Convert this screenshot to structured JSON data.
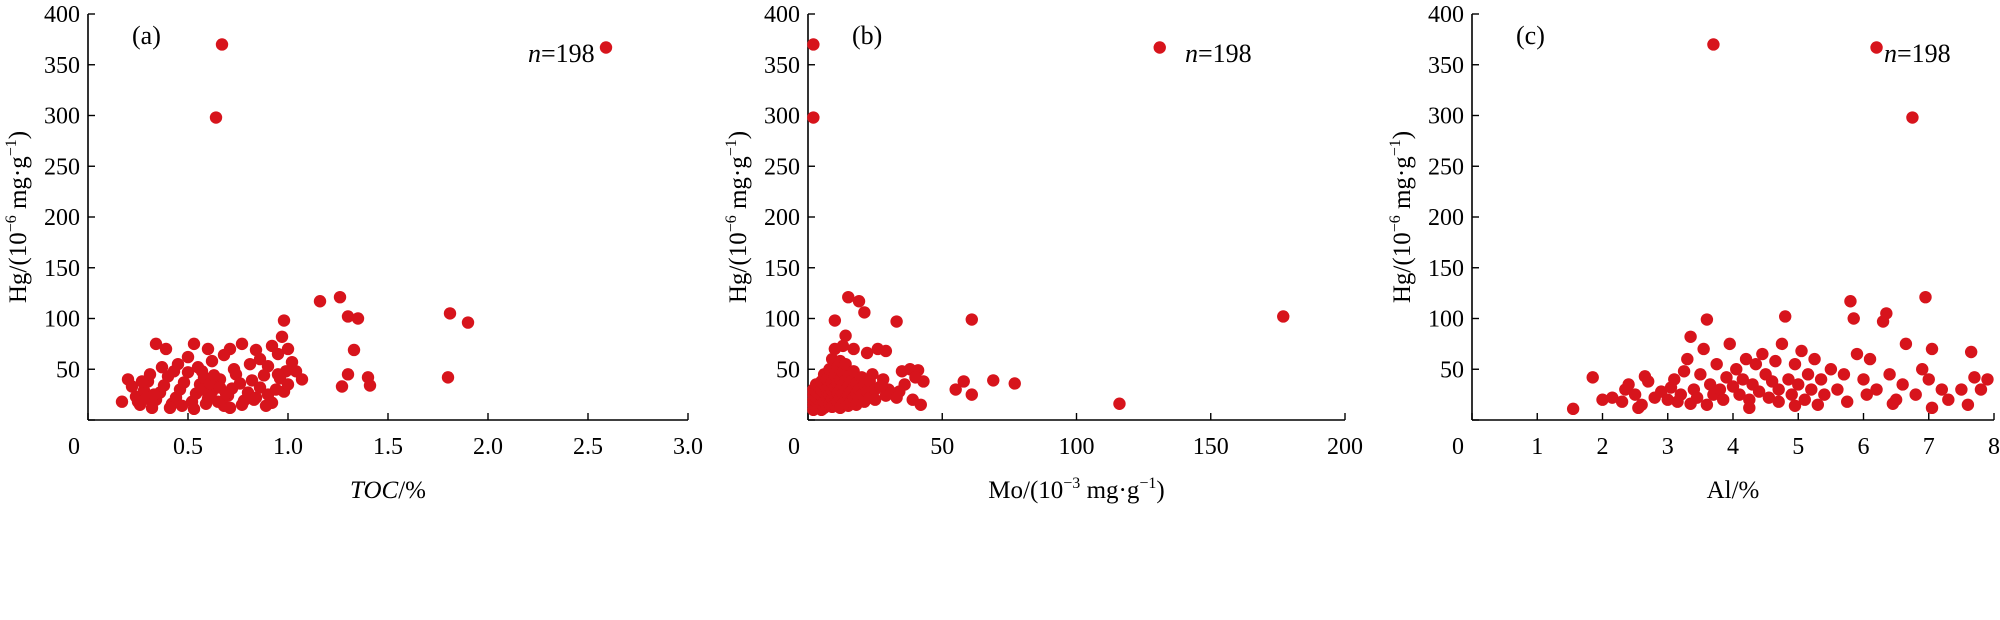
{
  "chart_data": [
    {
      "type": "scatter",
      "panel_label": "(a)",
      "annotation": {
        "italic": "n",
        "rest": "=198"
      },
      "xlabel": {
        "main": "TOC",
        "suffix": "/%",
        "main_italic": true
      },
      "ylabel": {
        "pre": "Hg/(10",
        "exp": "−6",
        "mid": " mg·g",
        "exp2": "−1",
        "post": ")"
      },
      "xlim": [
        0,
        3.0
      ],
      "ylim": [
        0,
        400
      ],
      "xticks": [
        "0",
        "0.5",
        "1.0",
        "1.5",
        "2.0",
        "2.5",
        "3.0"
      ],
      "xtick_values": [
        0,
        0.5,
        1.0,
        1.5,
        2.0,
        2.5,
        3.0
      ],
      "yticks": [
        "0",
        "50",
        "100",
        "150",
        "200",
        "250",
        "300",
        "350",
        "400"
      ],
      "ytick_values": [
        0,
        50,
        100,
        150,
        200,
        250,
        300,
        350,
        400
      ],
      "marker_color": "#d7141c",
      "points": [
        [
          0.67,
          370
        ],
        [
          0.64,
          298
        ],
        [
          2.59,
          367
        ],
        [
          1.16,
          117
        ],
        [
          1.26,
          121
        ],
        [
          1.3,
          102
        ],
        [
          1.35,
          100
        ],
        [
          0.98,
          98
        ],
        [
          1.81,
          105
        ],
        [
          1.9,
          96
        ],
        [
          1.8,
          42
        ],
        [
          1.33,
          69
        ],
        [
          1.4,
          42
        ],
        [
          1.41,
          34
        ],
        [
          1.3,
          45
        ],
        [
          1.27,
          33
        ],
        [
          0.34,
          75
        ],
        [
          0.39,
          70
        ],
        [
          0.53,
          75
        ],
        [
          0.6,
          70
        ],
        [
          0.71,
          70
        ],
        [
          0.77,
          75
        ],
        [
          0.84,
          69
        ],
        [
          0.92,
          73
        ],
        [
          0.95,
          65
        ],
        [
          0.97,
          82
        ],
        [
          1.0,
          70
        ],
        [
          1.02,
          57
        ],
        [
          1.04,
          48
        ],
        [
          1.07,
          40
        ],
        [
          0.99,
          48
        ],
        [
          0.95,
          45
        ],
        [
          0.9,
          53
        ],
        [
          0.86,
          60
        ],
        [
          0.81,
          55
        ],
        [
          0.2,
          40
        ],
        [
          0.17,
          18
        ],
        [
          0.22,
          33
        ],
        [
          0.24,
          23
        ],
        [
          0.26,
          15
        ],
        [
          0.28,
          29
        ],
        [
          0.3,
          38
        ],
        [
          0.32,
          12
        ],
        [
          0.34,
          20
        ],
        [
          0.36,
          27
        ],
        [
          0.38,
          34
        ],
        [
          0.4,
          43
        ],
        [
          0.42,
          16
        ],
        [
          0.44,
          22
        ],
        [
          0.46,
          30
        ],
        [
          0.48,
          37
        ],
        [
          0.5,
          47
        ],
        [
          0.52,
          18
        ],
        [
          0.54,
          26
        ],
        [
          0.56,
          35
        ],
        [
          0.58,
          42
        ],
        [
          0.6,
          21
        ],
        [
          0.62,
          28
        ],
        [
          0.64,
          33
        ],
        [
          0.66,
          40
        ],
        [
          0.68,
          14
        ],
        [
          0.7,
          24
        ],
        [
          0.72,
          31
        ],
        [
          0.74,
          45
        ],
        [
          0.76,
          36
        ],
        [
          0.78,
          19
        ],
        [
          0.8,
          27
        ],
        [
          0.82,
          39
        ],
        [
          0.84,
          22
        ],
        [
          0.86,
          32
        ],
        [
          0.88,
          44
        ],
        [
          0.9,
          25
        ],
        [
          0.92,
          17
        ],
        [
          0.94,
          30
        ],
        [
          0.96,
          41
        ],
        [
          0.98,
          28
        ],
        [
          1.0,
          35
        ],
        [
          0.45,
          55
        ],
        [
          0.5,
          62
        ],
        [
          0.55,
          52
        ],
        [
          0.62,
          58
        ],
        [
          0.68,
          64
        ],
        [
          0.73,
          50
        ],
        [
          0.57,
          48
        ],
        [
          0.43,
          48
        ],
        [
          0.37,
          52
        ],
        [
          0.31,
          45
        ],
        [
          0.27,
          38
        ],
        [
          0.25,
          18
        ],
        [
          0.29,
          21
        ],
        [
          0.33,
          25
        ],
        [
          0.41,
          12
        ],
        [
          0.47,
          14
        ],
        [
          0.53,
          11
        ],
        [
          0.59,
          16
        ],
        [
          0.65,
          18
        ],
        [
          0.71,
          12
        ],
        [
          0.77,
          15
        ],
        [
          0.83,
          20
        ],
        [
          0.89,
          14
        ],
        [
          0.57,
          30
        ],
        [
          0.61,
          36
        ],
        [
          0.63,
          44
        ],
        [
          0.66,
          32
        ],
        [
          0.69,
          26
        ]
      ]
    },
    {
      "type": "scatter",
      "panel_label": "(b)",
      "annotation": {
        "italic": "n",
        "rest": "=198"
      },
      "xlabel": {
        "main": "Mo/(10",
        "exp": "−3",
        "mid": " mg·g",
        "exp2": "−1",
        "post": ")"
      },
      "ylabel": {
        "pre": "Hg/(10",
        "exp": "−6",
        "mid": " mg·g",
        "exp2": "−1",
        "post": ")"
      },
      "xlim": [
        0,
        200
      ],
      "ylim": [
        0,
        400
      ],
      "xticks": [
        "0",
        "50",
        "100",
        "150",
        "200"
      ],
      "xtick_values": [
        0,
        50,
        100,
        150,
        200
      ],
      "yticks": [
        "0",
        "50",
        "100",
        "150",
        "200",
        "250",
        "300",
        "350",
        "400"
      ],
      "ytick_values": [
        0,
        50,
        100,
        150,
        200,
        250,
        300,
        350,
        400
      ],
      "marker_color": "#d7141c",
      "points": [
        [
          2,
          370
        ],
        [
          2,
          298
        ],
        [
          131,
          367
        ],
        [
          177,
          102
        ],
        [
          61,
          99
        ],
        [
          116,
          16
        ],
        [
          77,
          36
        ],
        [
          69,
          39
        ],
        [
          58,
          38
        ],
        [
          55,
          30
        ],
        [
          61,
          25
        ],
        [
          15,
          121
        ],
        [
          19,
          117
        ],
        [
          21,
          106
        ],
        [
          10,
          98
        ],
        [
          33,
          97
        ],
        [
          14,
          83
        ],
        [
          13,
          73
        ],
        [
          17,
          70
        ],
        [
          22,
          66
        ],
        [
          26,
          70
        ],
        [
          29,
          68
        ],
        [
          35,
          48
        ],
        [
          38,
          50
        ],
        [
          41,
          49
        ],
        [
          43,
          38
        ],
        [
          40,
          42
        ],
        [
          36,
          35
        ],
        [
          34,
          28
        ],
        [
          39,
          20
        ],
        [
          42,
          15
        ],
        [
          30,
          30
        ],
        [
          28,
          40
        ],
        [
          24,
          45
        ],
        [
          2,
          10
        ],
        [
          2,
          15
        ],
        [
          2,
          20
        ],
        [
          2,
          25
        ],
        [
          2,
          30
        ],
        [
          3,
          12
        ],
        [
          3,
          18
        ],
        [
          3,
          22
        ],
        [
          3,
          28
        ],
        [
          3,
          35
        ],
        [
          4,
          14
        ],
        [
          4,
          20
        ],
        [
          4,
          26
        ],
        [
          4,
          33
        ],
        [
          5,
          10
        ],
        [
          5,
          16
        ],
        [
          5,
          24
        ],
        [
          5,
          30
        ],
        [
          5,
          38
        ],
        [
          6,
          12
        ],
        [
          6,
          18
        ],
        [
          6,
          27
        ],
        [
          6,
          35
        ],
        [
          6,
          45
        ],
        [
          7,
          14
        ],
        [
          7,
          22
        ],
        [
          7,
          31
        ],
        [
          7,
          40
        ],
        [
          8,
          16
        ],
        [
          8,
          25
        ],
        [
          8,
          33
        ],
        [
          8,
          50
        ],
        [
          9,
          13
        ],
        [
          9,
          21
        ],
        [
          9,
          29
        ],
        [
          9,
          37
        ],
        [
          9,
          60
        ],
        [
          10,
          15
        ],
        [
          10,
          24
        ],
        [
          10,
          32
        ],
        [
          10,
          44
        ],
        [
          10,
          70
        ],
        [
          11,
          18
        ],
        [
          11,
          27
        ],
        [
          11,
          36
        ],
        [
          11,
          52
        ],
        [
          12,
          12
        ],
        [
          12,
          22
        ],
        [
          12,
          30
        ],
        [
          12,
          40
        ],
        [
          12,
          58
        ],
        [
          13,
          16
        ],
        [
          13,
          26
        ],
        [
          13,
          35
        ],
        [
          13,
          47
        ],
        [
          14,
          20
        ],
        [
          14,
          29
        ],
        [
          14,
          39
        ],
        [
          14,
          55
        ],
        [
          15,
          14
        ],
        [
          15,
          24
        ],
        [
          15,
          33
        ],
        [
          15,
          43
        ],
        [
          16,
          18
        ],
        [
          16,
          28
        ],
        [
          16,
          38
        ],
        [
          17,
          22
        ],
        [
          17,
          32
        ],
        [
          17,
          48
        ],
        [
          18,
          15
        ],
        [
          18,
          26
        ],
        [
          18,
          36
        ],
        [
          19,
          20
        ],
        [
          19,
          30
        ],
        [
          20,
          25
        ],
        [
          20,
          42
        ],
        [
          21,
          18
        ],
        [
          21,
          35
        ],
        [
          22,
          28
        ],
        [
          23,
          22
        ],
        [
          23,
          38
        ],
        [
          25,
          30
        ],
        [
          25,
          20
        ],
        [
          27,
          33
        ],
        [
          29,
          24
        ],
        [
          31,
          27
        ],
        [
          33,
          22
        ]
      ]
    },
    {
      "type": "scatter",
      "panel_label": "(c)",
      "annotation": {
        "italic": "n",
        "rest": "=198"
      },
      "xlabel": {
        "main": "Al",
        "suffix": "/%",
        "main_italic": false
      },
      "ylabel": {
        "pre": "Hg/(10",
        "exp": "−6",
        "mid": " mg·g",
        "exp2": "−1",
        "post": ")"
      },
      "xlim": [
        0,
        8
      ],
      "ylim": [
        0,
        400
      ],
      "xticks": [
        "0",
        "1",
        "2",
        "3",
        "4",
        "5",
        "6",
        "7",
        "8"
      ],
      "xtick_values": [
        0,
        1,
        2,
        3,
        4,
        5,
        6,
        7,
        8
      ],
      "yticks": [
        "0",
        "50",
        "100",
        "150",
        "200",
        "250",
        "300",
        "350",
        "400"
      ],
      "ytick_values": [
        0,
        50,
        100,
        150,
        200,
        250,
        300,
        350,
        400
      ],
      "marker_color": "#d7141c",
      "points": [
        [
          3.7,
          370
        ],
        [
          6.2,
          367
        ],
        [
          6.75,
          298
        ],
        [
          1.55,
          11
        ],
        [
          1.85,
          42
        ],
        [
          2.0,
          20
        ],
        [
          2.15,
          22
        ],
        [
          2.3,
          18
        ],
        [
          2.35,
          30
        ],
        [
          2.4,
          35
        ],
        [
          2.5,
          25
        ],
        [
          2.6,
          15
        ],
        [
          2.65,
          43
        ],
        [
          2.7,
          38
        ],
        [
          2.8,
          22
        ],
        [
          2.9,
          28
        ],
        [
          3.0,
          20
        ],
        [
          3.05,
          32
        ],
        [
          3.1,
          40
        ],
        [
          3.2,
          25
        ],
        [
          3.25,
          48
        ],
        [
          3.3,
          60
        ],
        [
          3.35,
          82
        ],
        [
          3.4,
          30
        ],
        [
          3.45,
          22
        ],
        [
          3.5,
          45
        ],
        [
          3.55,
          70
        ],
        [
          3.6,
          99
        ],
        [
          3.65,
          35
        ],
        [
          3.7,
          25
        ],
        [
          3.75,
          55
        ],
        [
          3.8,
          30
        ],
        [
          3.85,
          20
        ],
        [
          3.9,
          42
        ],
        [
          3.95,
          75
        ],
        [
          4.0,
          33
        ],
        [
          4.05,
          50
        ],
        [
          4.1,
          25
        ],
        [
          4.15,
          40
        ],
        [
          4.2,
          60
        ],
        [
          4.25,
          20
        ],
        [
          4.3,
          35
        ],
        [
          4.35,
          55
        ],
        [
          4.4,
          28
        ],
        [
          4.45,
          65
        ],
        [
          4.5,
          45
        ],
        [
          4.55,
          22
        ],
        [
          4.6,
          38
        ],
        [
          4.65,
          58
        ],
        [
          4.7,
          30
        ],
        [
          4.75,
          75
        ],
        [
          4.8,
          102
        ],
        [
          4.85,
          40
        ],
        [
          4.9,
          25
        ],
        [
          4.95,
          55
        ],
        [
          5.0,
          35
        ],
        [
          5.05,
          68
        ],
        [
          5.1,
          20
        ],
        [
          5.15,
          45
        ],
        [
          5.2,
          30
        ],
        [
          5.25,
          60
        ],
        [
          5.3,
          15
        ],
        [
          5.35,
          40
        ],
        [
          5.4,
          25
        ],
        [
          5.5,
          50
        ],
        [
          5.6,
          30
        ],
        [
          5.7,
          45
        ],
        [
          5.8,
          117
        ],
        [
          5.85,
          100
        ],
        [
          5.9,
          65
        ],
        [
          6.0,
          40
        ],
        [
          6.05,
          25
        ],
        [
          6.1,
          60
        ],
        [
          6.2,
          30
        ],
        [
          6.3,
          97
        ],
        [
          6.35,
          105
        ],
        [
          6.4,
          45
        ],
        [
          6.5,
          20
        ],
        [
          6.6,
          35
        ],
        [
          6.65,
          75
        ],
        [
          6.8,
          25
        ],
        [
          6.9,
          50
        ],
        [
          6.95,
          121
        ],
        [
          7.0,
          40
        ],
        [
          7.05,
          70
        ],
        [
          7.2,
          30
        ],
        [
          7.3,
          20
        ],
        [
          7.5,
          30
        ],
        [
          7.65,
          67
        ],
        [
          7.7,
          42
        ],
        [
          7.8,
          30
        ],
        [
          7.9,
          40
        ],
        [
          7.6,
          15
        ],
        [
          3.15,
          18
        ],
        [
          3.6,
          15
        ],
        [
          4.25,
          12
        ],
        [
          4.95,
          14
        ],
        [
          5.75,
          18
        ],
        [
          6.45,
          16
        ],
        [
          7.05,
          12
        ],
        [
          2.55,
          12
        ],
        [
          3.35,
          16
        ],
        [
          4.7,
          18
        ]
      ]
    }
  ]
}
